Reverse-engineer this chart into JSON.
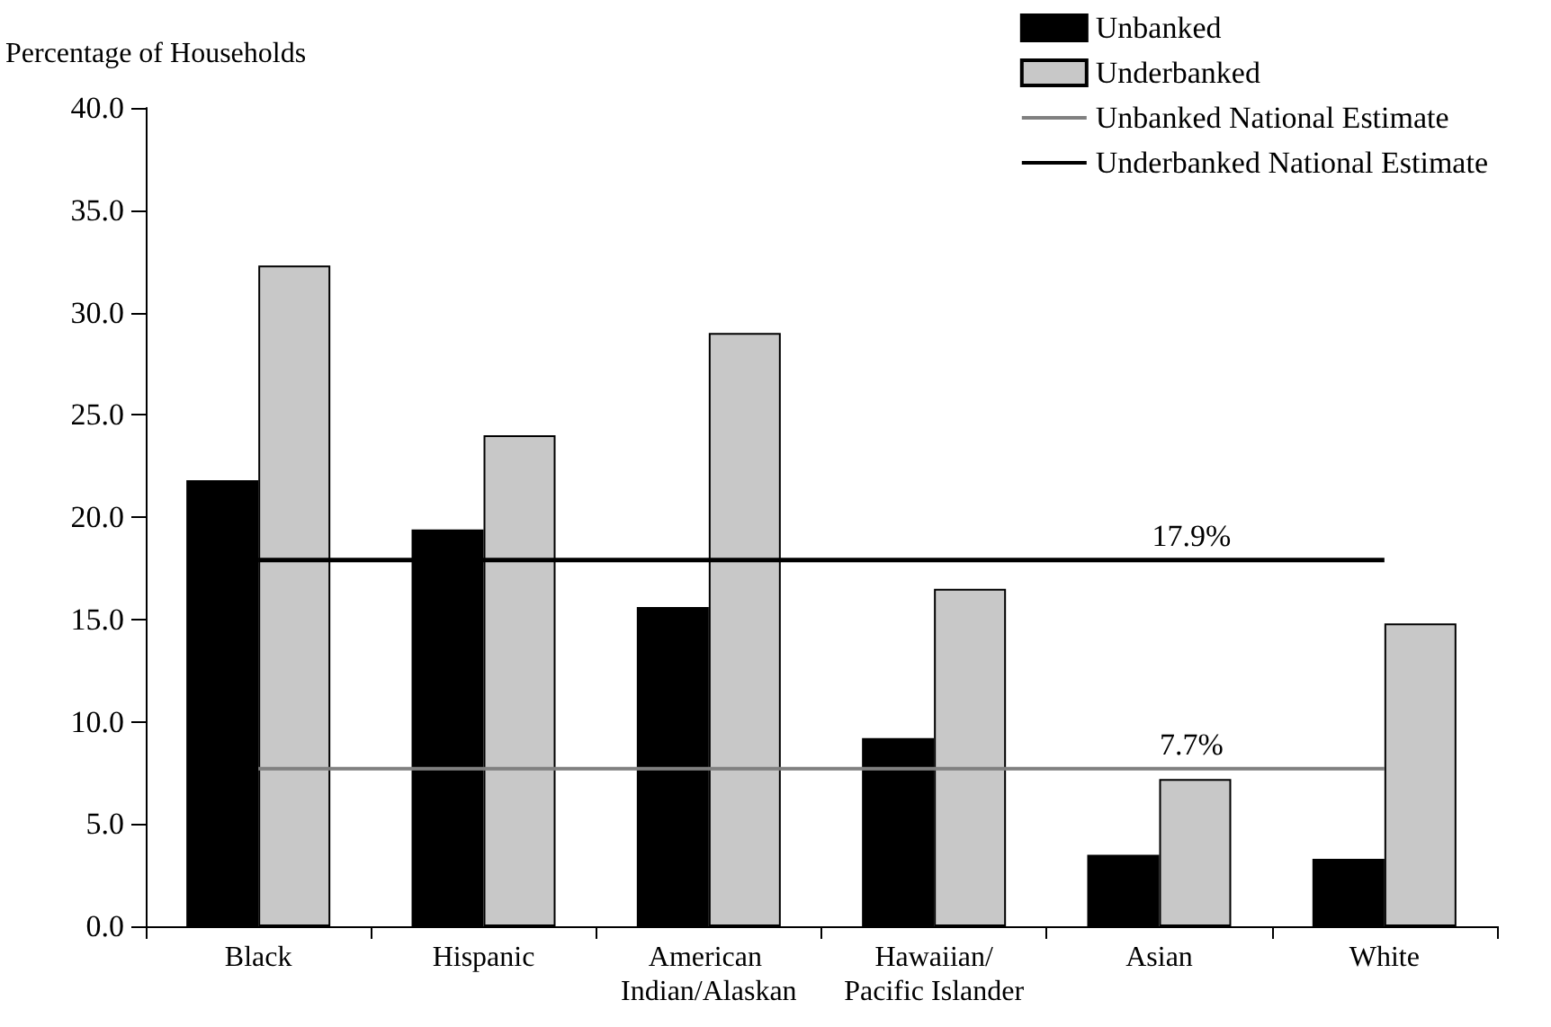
{
  "chart_data": {
    "type": "bar",
    "ylabel": "Percentage of Households",
    "categories": [
      "Black",
      "Hispanic",
      "American Indian/Alaskan",
      "Hawaiian/Pacific Islander",
      "Asian",
      "White"
    ],
    "series": [
      {
        "name": "Unbanked",
        "color": "#000000",
        "values": [
          21.8,
          19.4,
          15.6,
          9.2,
          3.5,
          3.3
        ]
      },
      {
        "name": "Underbanked",
        "color": "#c8c8c8",
        "values": [
          32.3,
          24.0,
          29.0,
          16.5,
          7.2,
          14.8
        ]
      },
      {
        "name": "Unbanked National Estimate",
        "type": "line",
        "color": "#808080",
        "values": [
          7.7,
          7.7,
          7.7,
          7.7,
          7.7,
          7.7
        ],
        "value_labels": [
          null,
          null,
          null,
          null,
          "7.7%",
          null
        ]
      },
      {
        "name": "Underbanked National Estimate",
        "type": "line",
        "color": "#000000",
        "values": [
          17.9,
          17.9,
          17.9,
          17.9,
          17.9,
          17.9
        ],
        "value_labels": [
          null,
          null,
          null,
          null,
          "17.9%",
          null
        ]
      }
    ],
    "ylim": [
      0,
      40
    ],
    "yticks": [
      {
        "value": 0,
        "label": "0.0"
      },
      {
        "value": 5,
        "label": "5.0"
      },
      {
        "value": 10,
        "label": "10.0"
      },
      {
        "value": 15,
        "label": "15.0"
      },
      {
        "value": 20,
        "label": "20.0"
      },
      {
        "value": 25,
        "label": "25.0"
      },
      {
        "value": 30,
        "label": "30.0"
      },
      {
        "value": 35,
        "label": "35.0"
      },
      {
        "value": 40,
        "label": "40.0"
      }
    ],
    "grid": false,
    "legend": "top right",
    "marker": "none",
    "line_style": "solid"
  }
}
